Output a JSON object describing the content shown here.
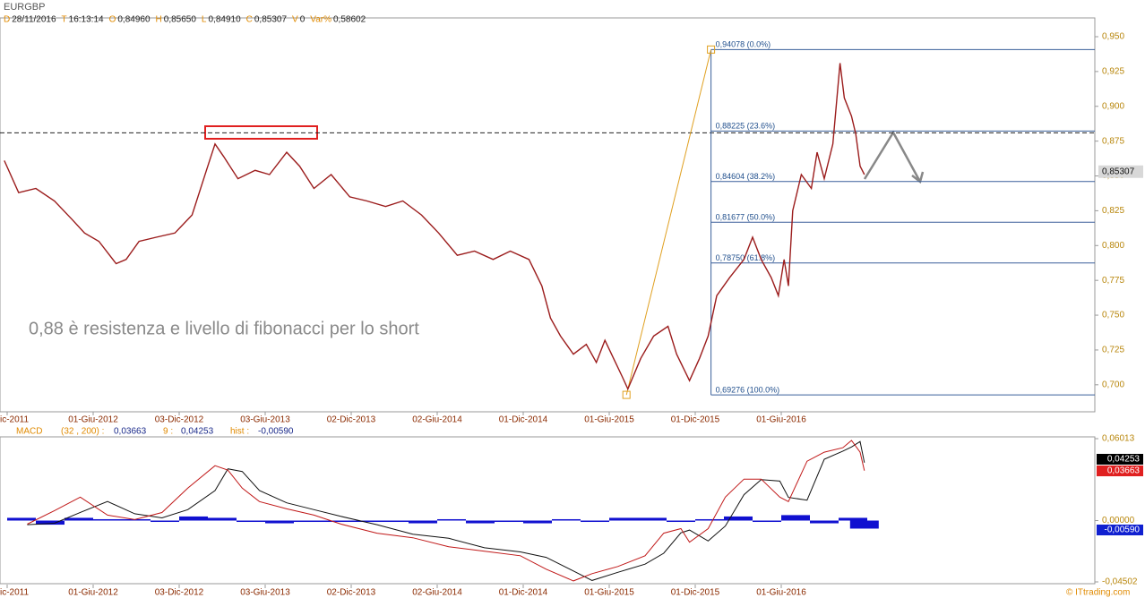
{
  "chart_data": [
    {
      "type": "line",
      "title": "EURGBP",
      "info": [
        {
          "key": "D",
          "value": "28/11/2016"
        },
        {
          "key": "T",
          "value": "16:13:14"
        },
        {
          "key": "O",
          "value": "0,84960"
        },
        {
          "key": "H",
          "value": "0,85650"
        },
        {
          "key": "L",
          "value": "0,84910"
        },
        {
          "key": "C",
          "value": "0,85307"
        },
        {
          "key": "V",
          "value": "0"
        },
        {
          "key": "Var%",
          "value": "0,58602"
        }
      ],
      "annotation": "0,88 è resistenza e livello di fibonacci per lo short",
      "color": "#9b1c1c",
      "x": [
        -0.2,
        0.8,
        2,
        3.3,
        4.5,
        5.4,
        6.4,
        7.6,
        8.3,
        9.2,
        10.4,
        11.7,
        12.9,
        13.9,
        14.5,
        15.1,
        16.1,
        17.3,
        18.3,
        19.5,
        20.4,
        21.4,
        22.6,
        23.9,
        25.1,
        26.4,
        27.6,
        28.9,
        30.1,
        31.4,
        32.6,
        33.9,
        35.1,
        36.4,
        37.3,
        37.9,
        38.6,
        39.5,
        40.4,
        41.1,
        41.7,
        42.3,
        42.9,
        43.3,
        44.2,
        45.1,
        46.1,
        46.7,
        47.6,
        48.3,
        48.9,
        49.5,
        50.4,
        51.4,
        52,
        52.6,
        53.3,
        53.8,
        54.2,
        54.5,
        54.8,
        55.4,
        56.1,
        56.5,
        57,
        57.6,
        58.1,
        58.4,
        58.9,
        59.2,
        59.5,
        59.8
      ],
      "values": [
        0.861,
        0.838,
        0.841,
        0.832,
        0.819,
        0.809,
        0.803,
        0.787,
        0.79,
        0.803,
        0.806,
        0.809,
        0.822,
        0.854,
        0.873,
        0.864,
        0.848,
        0.854,
        0.851,
        0.867,
        0.857,
        0.841,
        0.851,
        0.835,
        0.832,
        0.828,
        0.832,
        0.822,
        0.809,
        0.793,
        0.796,
        0.79,
        0.796,
        0.79,
        0.771,
        0.748,
        0.735,
        0.722,
        0.729,
        0.716,
        0.732,
        0.719,
        0.706,
        0.697,
        0.719,
        0.735,
        0.742,
        0.722,
        0.703,
        0.719,
        0.735,
        0.764,
        0.777,
        0.79,
        0.806,
        0.79,
        0.777,
        0.764,
        0.79,
        0.771,
        0.825,
        0.851,
        0.841,
        0.867,
        0.848,
        0.873,
        0.931,
        0.906,
        0.893,
        0.88,
        0.857,
        0.851
      ],
      "xlim": [
        -0.5,
        75.875
      ],
      "ylim": [
        0.6806,
        0.9635
      ],
      "yticks": [
        {
          "value": 0.95,
          "label": "0,950"
        },
        {
          "value": 0.925,
          "label": "0,925"
        },
        {
          "value": 0.9,
          "label": "0,900"
        },
        {
          "value": 0.875,
          "label": "0,875"
        },
        {
          "value": 0.85,
          "label": "0,850"
        },
        {
          "value": 0.825,
          "label": "0,825"
        },
        {
          "value": 0.8,
          "label": "0,800"
        },
        {
          "value": 0.775,
          "label": "0,775"
        },
        {
          "value": 0.75,
          "label": "0,750"
        },
        {
          "value": 0.725,
          "label": "0,725"
        },
        {
          "value": 0.7,
          "label": "0,700"
        }
      ],
      "xticks": [
        {
          "value": 0,
          "label": "ic-2011"
        },
        {
          "value": 6,
          "label": "01-Giu-2012"
        },
        {
          "value": 12,
          "label": "03-Dic-2012"
        },
        {
          "value": 18,
          "label": "03-Giu-2013"
        },
        {
          "value": 24,
          "label": "02-Dic-2013"
        },
        {
          "value": 30,
          "label": "02-Giu-2014"
        },
        {
          "value": 36,
          "label": "01-Dic-2014"
        },
        {
          "value": 42,
          "label": "01-Giu-2015"
        },
        {
          "value": 48,
          "label": "01-Dic-2015"
        },
        {
          "value": 54,
          "label": "01-Giu-2016"
        }
      ],
      "last_price": {
        "value": 0.85307,
        "label": "0,85307"
      },
      "resistance": 0.881,
      "fibonacci": {
        "from": [
          43.2,
          0.69276
        ],
        "to": [
          49.1,
          0.94078
        ],
        "color": "#e0a020",
        "line_color": "#3a5f9a",
        "levels": [
          {
            "value": 0.94078,
            "label": "0,94078 (0.0%)"
          },
          {
            "value": 0.88225,
            "label": "0,88225 (23.6%)"
          },
          {
            "value": 0.84604,
            "label": "0,84604 (38.2%)"
          },
          {
            "value": 0.81677,
            "label": "0,81677 (50.0%)"
          },
          {
            "value": 0.7875,
            "label": "0,78750 (61.8%)"
          },
          {
            "value": 0.69276,
            "label": "0,69276 (100.0%)"
          }
        ]
      }
    },
    {
      "type": "macd",
      "title": "MACD",
      "params": "(32 , 200) :",
      "signal_label": "9 :",
      "hist_label": "hist :",
      "xlim": [
        -0.5,
        75.875
      ],
      "ylim": [
        -0.04502,
        0.06013
      ],
      "yticks": [
        {
          "value": 0.06013,
          "label": "0,06013"
        },
        {
          "value": 0,
          "label": "0,00000"
        },
        {
          "value": -0.04502,
          "label": "-0,04502"
        }
      ],
      "xticks": [
        {
          "value": 0,
          "label": "ic-2011"
        },
        {
          "value": 6,
          "label": "01-Giu-2012"
        },
        {
          "value": 12,
          "label": "03-Dic-2012"
        },
        {
          "value": 18,
          "label": "03-Giu-2013"
        },
        {
          "value": 24,
          "label": "02-Dic-2013"
        },
        {
          "value": 30,
          "label": "02-Giu-2014"
        },
        {
          "value": 36,
          "label": "01-Dic-2014"
        },
        {
          "value": 42,
          "label": "01-Giu-2015"
        },
        {
          "value": 48,
          "label": "01-Dic-2015"
        },
        {
          "value": 54,
          "label": "01-Giu-2016"
        }
      ],
      "macd": {
        "color": "#c01818",
        "x": [
          1.4,
          3.3,
          5.1,
          7,
          8.9,
          10.8,
          12.6,
          14.5,
          15.4,
          16.4,
          17.6,
          19.5,
          21.4,
          23.3,
          25.8,
          28.3,
          30.8,
          33.3,
          35.8,
          37.6,
          39.5,
          40.8,
          42.6,
          44.5,
          45.8,
          47,
          47.6,
          48.9,
          50.1,
          51.4,
          52.6,
          53.9,
          54.5,
          55.8,
          57,
          58.3,
          58.9,
          59.5,
          59.8
        ],
        "values": [
          -0.0026,
          0.0073,
          0.0172,
          0.004,
          0.0007,
          0.0059,
          0.0238,
          0.0403,
          0.037,
          0.0238,
          0.0139,
          0.0086,
          0.004,
          -0.0026,
          -0.0093,
          -0.0126,
          -0.0192,
          -0.0225,
          -0.0258,
          -0.0357,
          -0.0443,
          -0.039,
          -0.0337,
          -0.0258,
          -0.0093,
          -0.0059,
          -0.0159,
          -0.0059,
          0.0172,
          0.0304,
          0.0304,
          0.0172,
          0.0139,
          0.0436,
          0.0502,
          0.0535,
          0.0588,
          0.0502,
          0.0366
        ]
      },
      "signal": {
        "color": "#111111",
        "x": [
          1.4,
          3.3,
          5.1,
          7,
          8.9,
          10.8,
          12.6,
          14.5,
          15.4,
          16.4,
          17.6,
          19.5,
          21.4,
          23.3,
          25.8,
          28.3,
          30.8,
          33.3,
          35.8,
          37.6,
          39.5,
          40.8,
          42.6,
          44.5,
          45.8,
          47,
          47.6,
          48.9,
          50.1,
          51.4,
          52.6,
          53.9,
          54.5,
          55.8,
          57,
          58.3,
          58.9,
          59.5,
          59.8
        ],
        "values": [
          -0.003,
          -0.002,
          0.006,
          0.014,
          0.005,
          0.002,
          0.008,
          0.022,
          0.038,
          0.036,
          0.022,
          0.013,
          0.008,
          0.003,
          -0.003,
          -0.01,
          -0.013,
          -0.02,
          -0.023,
          -0.027,
          -0.037,
          -0.044,
          -0.038,
          -0.032,
          -0.024,
          -0.009,
          -0.007,
          -0.015,
          -0.004,
          0.019,
          0.03,
          0.029,
          0.017,
          0.015,
          0.045,
          0.051,
          0.054,
          0.058,
          0.0425
        ]
      },
      "histogram": {
        "color": "#1010d0",
        "x": [
          1,
          3,
          5,
          7,
          9,
          11,
          13,
          15,
          17,
          19,
          21,
          23,
          25,
          27,
          29,
          31,
          33,
          35,
          37,
          39,
          41,
          43,
          45,
          47,
          49,
          51,
          53,
          55,
          57,
          59,
          59.8
        ],
        "values": [
          0.002,
          -0.003,
          0.002,
          0.001,
          0.001,
          -0.001,
          0.003,
          0.002,
          -0.001,
          -0.002,
          -0.001,
          -0.001,
          -0.001,
          -0.001,
          -0.002,
          0.001,
          -0.002,
          -0.001,
          -0.002,
          0.001,
          -0.001,
          0.002,
          0.002,
          -0.001,
          0.001,
          0.003,
          -0.001,
          0.004,
          -0.002,
          0.002,
          -0.0059
        ]
      },
      "badges": [
        {
          "value": 0.04253,
          "label": "0,04253",
          "color": "#000000"
        },
        {
          "value": 0.03663,
          "label": "0,03663",
          "color": "#e02020"
        },
        {
          "value": -0.0059,
          "label": "-0,00590",
          "color": "#1020d0"
        }
      ]
    }
  ]
}
